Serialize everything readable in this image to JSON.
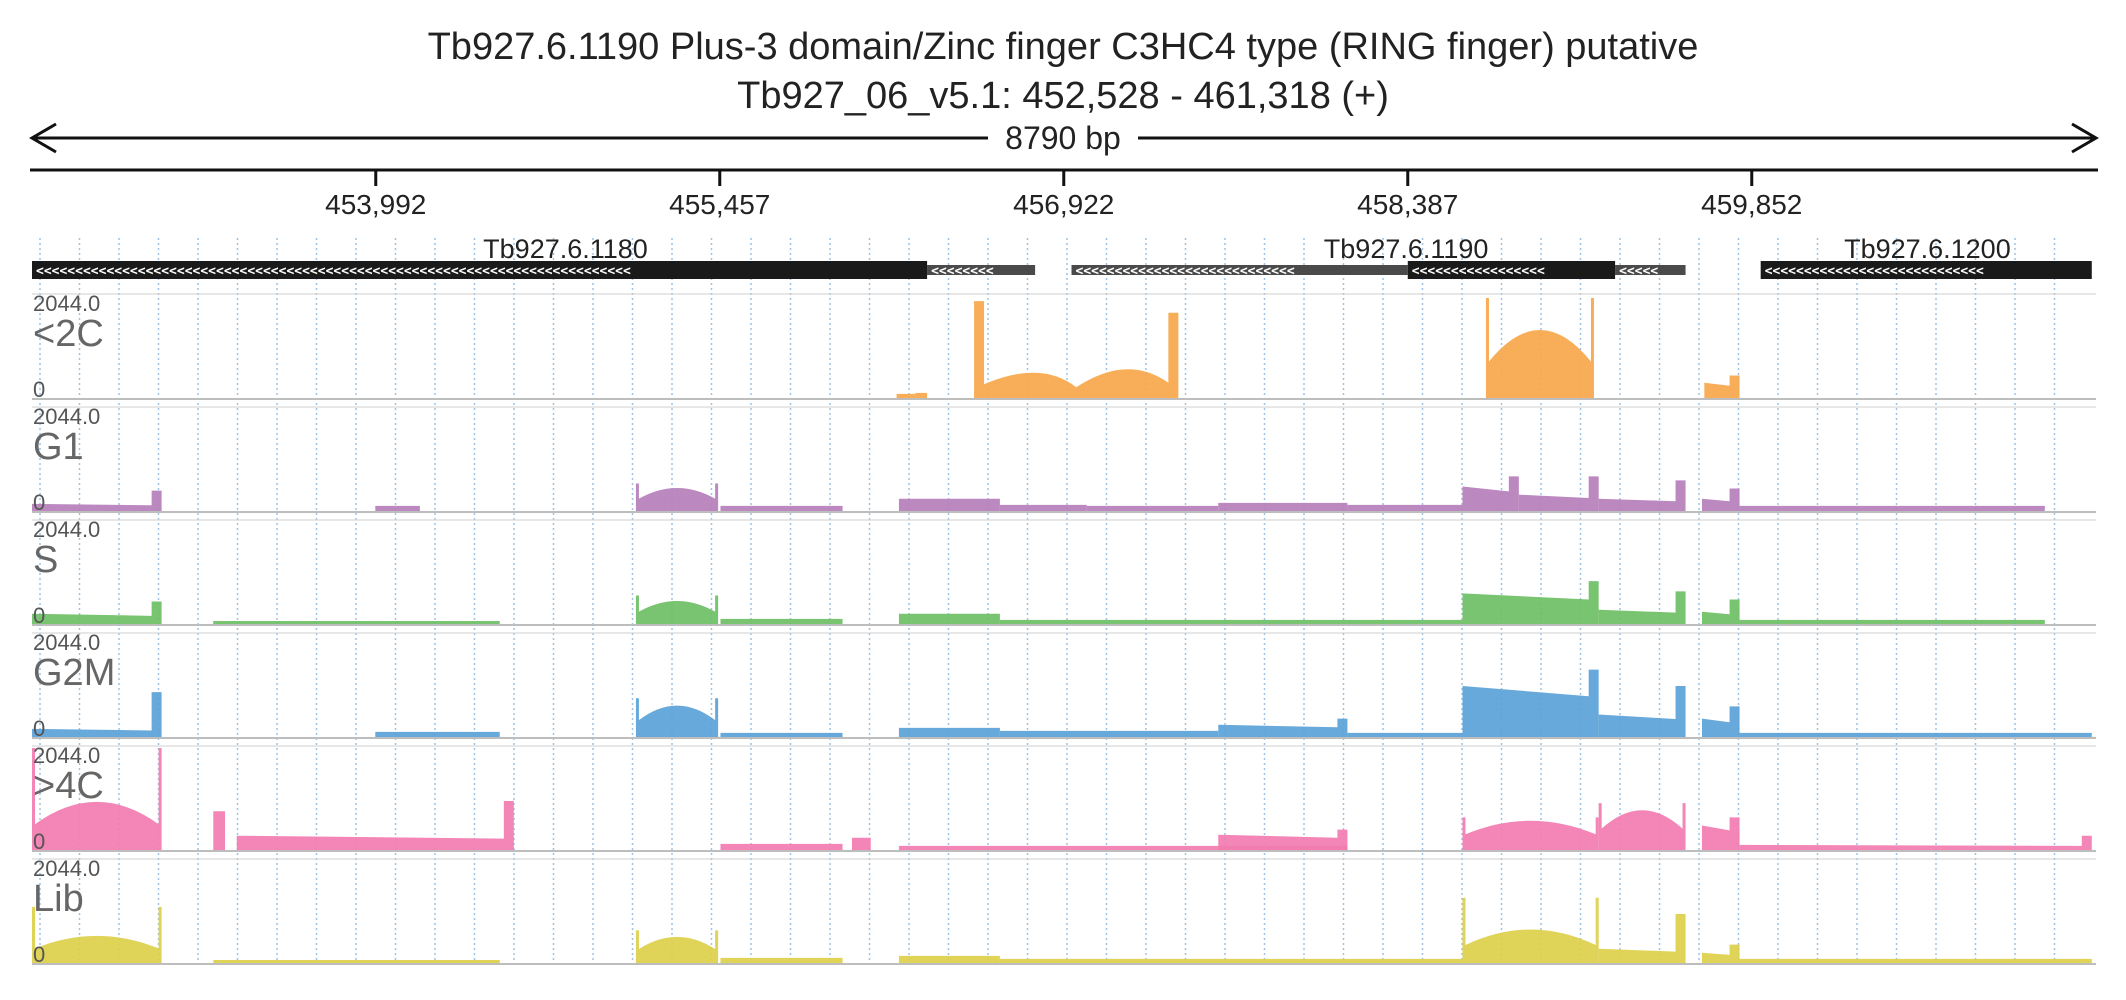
{
  "title": {
    "line1": "Tb927.6.1190  Plus-3 domain/Zinc finger  C3HC4 type (RING finger)  putative",
    "line2": "Tb927_06_v5.1: 452,528 - 461,318 (+)"
  },
  "ruler": {
    "span_label": "8790 bp",
    "start": 452528,
    "end": 461318,
    "ticks": [
      {
        "pos": 453992,
        "label": "453,992"
      },
      {
        "pos": 455457,
        "label": "455,457"
      },
      {
        "pos": 456922,
        "label": "456,922"
      },
      {
        "pos": 458387,
        "label": "458,387"
      },
      {
        "pos": 459852,
        "label": "459,852"
      }
    ]
  },
  "genes": [
    {
      "name": "Tb927.6.1180",
      "strand": "-",
      "cds": [
        452528,
        456340
      ],
      "utr": [
        [
          456340,
          456800
        ]
      ],
      "label_pos": 454800
    },
    {
      "name": "Tb927.6.1190",
      "strand": "-",
      "cds": [
        458387,
        459270
      ],
      "utr": [
        [
          456955,
          458387
        ],
        [
          459270,
          459570
        ]
      ],
      "label_pos": 458380
    },
    {
      "name": "Tb927.6.1200",
      "strand": "-",
      "cds": [
        459890,
        461300
      ],
      "utr": [],
      "label_pos": 460600
    }
  ],
  "colors": {
    "<2C": "#f7a74a",
    "G1": "#b57fba",
    "S": "#6cbf64",
    "G2M": "#5aa2d8",
    ">4C": "#f27cb0",
    "Lib": "#dccf4a",
    "gene_cds": "#1a1a1a",
    "gene_utr": "#4a4a4a",
    "grid": "#9ec2e4"
  },
  "tracks": [
    {
      "name": "<2C",
      "max_label": "2044.0",
      "min_label": "0",
      "max": 2044.0,
      "segments": [
        {
          "start": 456210,
          "end": 456290,
          "level": 0.04
        },
        {
          "start": 456290,
          "end": 456340,
          "level": 0.05
        },
        {
          "start": 456540,
          "end": 457410,
          "level": 0.3,
          "edge": 0.95,
          "hump2": true
        },
        {
          "start": 458720,
          "end": 459180,
          "level": 0.65,
          "edge": 0.98,
          "hump": true
        },
        {
          "start": 459650,
          "end": 459800,
          "level": 0.15,
          "edge": 0.22
        }
      ]
    },
    {
      "name": "G1",
      "max_label": "2044.0",
      "min_label": "0",
      "max": 2044.0,
      "segments": [
        {
          "start": 452528,
          "end": 453080,
          "level": 0.07,
          "edge": 0.2
        },
        {
          "start": 453990,
          "end": 454180,
          "level": 0.05
        },
        {
          "start": 455100,
          "end": 455450,
          "level": 0.22,
          "edge": 0.27,
          "hump": true
        },
        {
          "start": 455460,
          "end": 455980,
          "level": 0.05
        },
        {
          "start": 456220,
          "end": 456650,
          "level": 0.12
        },
        {
          "start": 456650,
          "end": 457020,
          "level": 0.06
        },
        {
          "start": 457020,
          "end": 457580,
          "level": 0.05
        },
        {
          "start": 457580,
          "end": 458130,
          "level": 0.08
        },
        {
          "start": 458130,
          "end": 458620,
          "level": 0.06
        },
        {
          "start": 458620,
          "end": 458860,
          "level": 0.24,
          "edge": 0.34
        },
        {
          "start": 458860,
          "end": 459200,
          "level": 0.16,
          "edge": 0.34
        },
        {
          "start": 459200,
          "end": 459570,
          "level": 0.12,
          "edge": 0.3
        },
        {
          "start": 459640,
          "end": 459800,
          "level": 0.12,
          "edge": 0.22
        },
        {
          "start": 459800,
          "end": 461100,
          "level": 0.05
        }
      ]
    },
    {
      "name": "S",
      "max_label": "2044.0",
      "min_label": "0",
      "max": 2044.0,
      "segments": [
        {
          "start": 452528,
          "end": 453080,
          "level": 0.1,
          "edge": 0.22
        },
        {
          "start": 453300,
          "end": 454520,
          "level": 0.03
        },
        {
          "start": 455100,
          "end": 455450,
          "level": 0.22,
          "edge": 0.28,
          "hump": true
        },
        {
          "start": 455460,
          "end": 455980,
          "level": 0.05
        },
        {
          "start": 456220,
          "end": 456650,
          "level": 0.1
        },
        {
          "start": 456650,
          "end": 458620,
          "level": 0.04
        },
        {
          "start": 458620,
          "end": 459200,
          "level": 0.3,
          "edge": 0.42
        },
        {
          "start": 459200,
          "end": 459570,
          "level": 0.14,
          "edge": 0.32
        },
        {
          "start": 459640,
          "end": 459800,
          "level": 0.12,
          "edge": 0.24
        },
        {
          "start": 459800,
          "end": 461100,
          "level": 0.04
        }
      ]
    },
    {
      "name": "G2M",
      "max_label": "2044.0",
      "min_label": "0",
      "max": 2044.0,
      "segments": [
        {
          "start": 452528,
          "end": 453080,
          "level": 0.08,
          "edge": 0.44
        },
        {
          "start": 453990,
          "end": 454520,
          "level": 0.05
        },
        {
          "start": 455100,
          "end": 455450,
          "level": 0.3,
          "edge": 0.38,
          "hump": true
        },
        {
          "start": 455460,
          "end": 455980,
          "level": 0.04
        },
        {
          "start": 456220,
          "end": 456650,
          "level": 0.09
        },
        {
          "start": 456650,
          "end": 457580,
          "level": 0.06
        },
        {
          "start": 457580,
          "end": 458130,
          "level": 0.12,
          "edge": 0.18
        },
        {
          "start": 458130,
          "end": 458620,
          "level": 0.04
        },
        {
          "start": 458620,
          "end": 459200,
          "level": 0.5,
          "edge": 0.66
        },
        {
          "start": 459200,
          "end": 459570,
          "level": 0.22,
          "edge": 0.5
        },
        {
          "start": 459640,
          "end": 459800,
          "level": 0.18,
          "edge": 0.3
        },
        {
          "start": 459800,
          "end": 461300,
          "level": 0.04
        }
      ]
    },
    {
      "name": ">4C",
      "max_label": "2044.0",
      "min_label": "0",
      "max": 2044.0,
      "segments": [
        {
          "start": 452528,
          "end": 453080,
          "level": 0.46,
          "edge": 1.0,
          "hump": true
        },
        {
          "start": 453300,
          "end": 453350,
          "level": 0.38
        },
        {
          "start": 453400,
          "end": 454580,
          "level": 0.14,
          "edge": 0.48
        },
        {
          "start": 455460,
          "end": 455980,
          "level": 0.06
        },
        {
          "start": 456020,
          "end": 456100,
          "level": 0.12
        },
        {
          "start": 456220,
          "end": 458130,
          "level": 0.04
        },
        {
          "start": 457580,
          "end": 458130,
          "level": 0.15,
          "edge": 0.2
        },
        {
          "start": 458620,
          "end": 459200,
          "level": 0.28,
          "edge": 0.32,
          "hump": true
        },
        {
          "start": 459200,
          "end": 459570,
          "level": 0.38,
          "edge": 0.46,
          "hump": true
        },
        {
          "start": 459640,
          "end": 459800,
          "level": 0.24,
          "edge": 0.32
        },
        {
          "start": 459800,
          "end": 461300,
          "level": 0.05,
          "edge": 0.14
        }
      ]
    },
    {
      "name": "Lib",
      "max_label": "2044.0",
      "min_label": "0",
      "max": 2044.0,
      "segments": [
        {
          "start": 452528,
          "end": 453080,
          "level": 0.26,
          "edge": 0.55,
          "hump": true
        },
        {
          "start": 453300,
          "end": 454520,
          "level": 0.03
        },
        {
          "start": 455100,
          "end": 455450,
          "level": 0.25,
          "edge": 0.32,
          "hump": true
        },
        {
          "start": 455460,
          "end": 455980,
          "level": 0.05
        },
        {
          "start": 456220,
          "end": 456650,
          "level": 0.07
        },
        {
          "start": 456650,
          "end": 458620,
          "level": 0.04
        },
        {
          "start": 458620,
          "end": 459200,
          "level": 0.32,
          "edge": 0.64,
          "hump": true
        },
        {
          "start": 459200,
          "end": 459570,
          "level": 0.14,
          "edge": 0.48
        },
        {
          "start": 459640,
          "end": 459800,
          "level": 0.1,
          "edge": 0.18
        },
        {
          "start": 459800,
          "end": 461300,
          "level": 0.04
        }
      ]
    }
  ]
}
